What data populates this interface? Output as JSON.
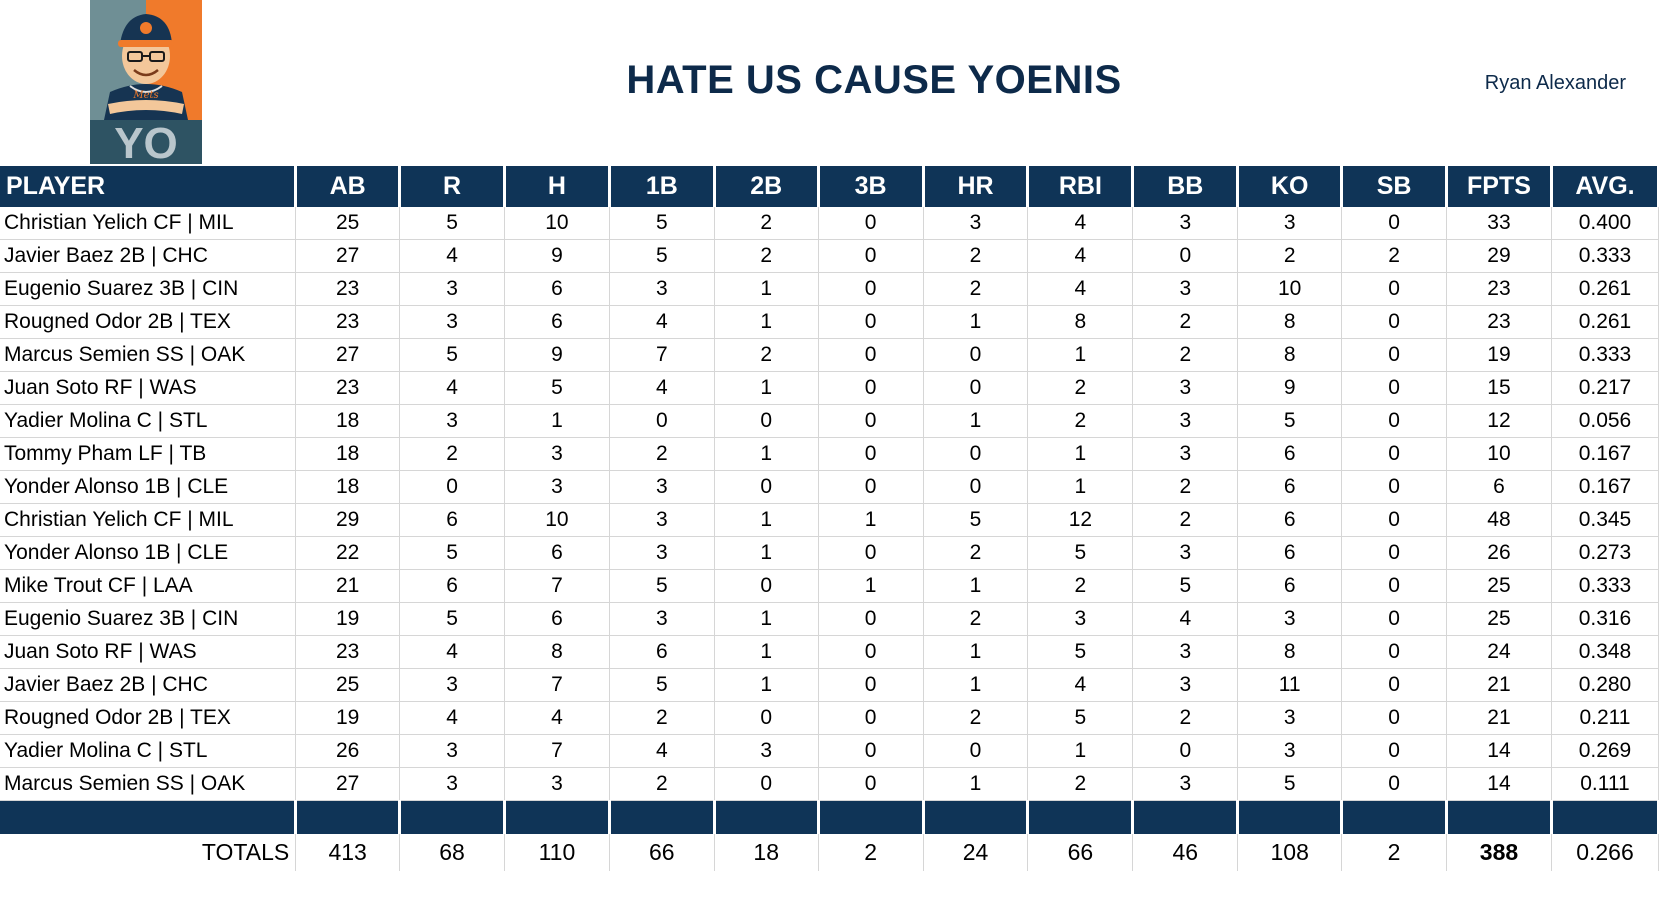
{
  "header": {
    "title": "HATE US CAUSE YOENIS",
    "owner": "Ryan Alexander",
    "logo_text": "YO",
    "logo_cap_text": "Mets"
  },
  "colors": {
    "navy": "#0f3457",
    "title": "#0d2a4a",
    "logo_orange": "#f07a2b",
    "logo_teal": "#6f8f95"
  },
  "table": {
    "columns": [
      "PLAYER",
      "AB",
      "R",
      "H",
      "1B",
      "2B",
      "3B",
      "HR",
      "RBI",
      "BB",
      "KO",
      "SB",
      "FPTS",
      "AVG."
    ],
    "rows": [
      [
        "Christian Yelich CF | MIL",
        "25",
        "5",
        "10",
        "5",
        "2",
        "0",
        "3",
        "4",
        "3",
        "3",
        "0",
        "33",
        "0.400"
      ],
      [
        "Javier Baez 2B | CHC",
        "27",
        "4",
        "9",
        "5",
        "2",
        "0",
        "2",
        "4",
        "0",
        "2",
        "2",
        "29",
        "0.333"
      ],
      [
        "Eugenio Suarez 3B | CIN",
        "23",
        "3",
        "6",
        "3",
        "1",
        "0",
        "2",
        "4",
        "3",
        "10",
        "0",
        "23",
        "0.261"
      ],
      [
        "Rougned Odor 2B | TEX",
        "23",
        "3",
        "6",
        "4",
        "1",
        "0",
        "1",
        "8",
        "2",
        "8",
        "0",
        "23",
        "0.261"
      ],
      [
        "Marcus Semien SS | OAK",
        "27",
        "5",
        "9",
        "7",
        "2",
        "0",
        "0",
        "1",
        "2",
        "8",
        "0",
        "19",
        "0.333"
      ],
      [
        "Juan Soto RF | WAS",
        "23",
        "4",
        "5",
        "4",
        "1",
        "0",
        "0",
        "2",
        "3",
        "9",
        "0",
        "15",
        "0.217"
      ],
      [
        "Yadier Molina C | STL",
        "18",
        "3",
        "1",
        "0",
        "0",
        "0",
        "1",
        "2",
        "3",
        "5",
        "0",
        "12",
        "0.056"
      ],
      [
        "Tommy Pham LF | TB",
        "18",
        "2",
        "3",
        "2",
        "1",
        "0",
        "0",
        "1",
        "3",
        "6",
        "0",
        "10",
        "0.167"
      ],
      [
        "Yonder Alonso 1B | CLE",
        "18",
        "0",
        "3",
        "3",
        "0",
        "0",
        "0",
        "1",
        "2",
        "6",
        "0",
        "6",
        "0.167"
      ],
      [
        "Christian Yelich CF | MIL",
        "29",
        "6",
        "10",
        "3",
        "1",
        "1",
        "5",
        "12",
        "2",
        "6",
        "0",
        "48",
        "0.345"
      ],
      [
        "Yonder Alonso 1B | CLE",
        "22",
        "5",
        "6",
        "3",
        "1",
        "0",
        "2",
        "5",
        "3",
        "6",
        "0",
        "26",
        "0.273"
      ],
      [
        "Mike Trout CF | LAA",
        "21",
        "6",
        "7",
        "5",
        "0",
        "1",
        "1",
        "2",
        "5",
        "6",
        "0",
        "25",
        "0.333"
      ],
      [
        "Eugenio Suarez 3B | CIN",
        "19",
        "5",
        "6",
        "3",
        "1",
        "0",
        "2",
        "3",
        "4",
        "3",
        "0",
        "25",
        "0.316"
      ],
      [
        "Juan Soto RF | WAS",
        "23",
        "4",
        "8",
        "6",
        "1",
        "0",
        "1",
        "5",
        "3",
        "8",
        "0",
        "24",
        "0.348"
      ],
      [
        "Javier Baez 2B | CHC",
        "25",
        "3",
        "7",
        "5",
        "1",
        "0",
        "1",
        "4",
        "3",
        "11",
        "0",
        "21",
        "0.280"
      ],
      [
        "Rougned Odor 2B | TEX",
        "19",
        "4",
        "4",
        "2",
        "0",
        "0",
        "2",
        "5",
        "2",
        "3",
        "0",
        "21",
        "0.211"
      ],
      [
        "Yadier Molina C | STL",
        "26",
        "3",
        "7",
        "4",
        "3",
        "0",
        "0",
        "1",
        "0",
        "3",
        "0",
        "14",
        "0.269"
      ],
      [
        "Marcus Semien SS | OAK",
        "27",
        "3",
        "3",
        "2",
        "0",
        "0",
        "1",
        "2",
        "3",
        "5",
        "0",
        "14",
        "0.111"
      ]
    ],
    "totals": [
      "TOTALS",
      "413",
      "68",
      "110",
      "66",
      "18",
      "2",
      "24",
      "66",
      "46",
      "108",
      "2",
      "388",
      "0.266"
    ]
  }
}
